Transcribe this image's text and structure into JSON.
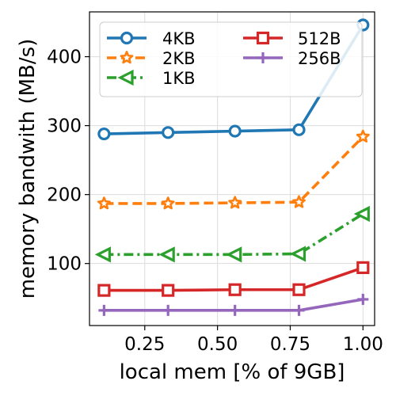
{
  "chart_data": {
    "type": "line",
    "xlabel": "local mem [% of 9GB]",
    "ylabel": "memory bandwith (MB/s)",
    "xlim": [
      0.06,
      1.04
    ],
    "ylim": [
      10,
      465
    ],
    "xticks": [
      0.25,
      0.5,
      0.75,
      1.0
    ],
    "xtick_labels": [
      "0.25",
      "0.50",
      "0.75",
      "1.00"
    ],
    "yticks": [
      100,
      200,
      300,
      400
    ],
    "ytick_labels": [
      "100",
      "200",
      "300",
      "400"
    ],
    "grid": true,
    "legend_position": "top",
    "x": [
      0.11,
      0.33,
      0.56,
      0.78,
      1.0
    ],
    "series": [
      {
        "name": "4KB",
        "values": [
          288,
          290,
          292,
          294,
          446
        ],
        "color": "#1f77b4",
        "marker": "circle",
        "dash": "solid"
      },
      {
        "name": "2KB",
        "values": [
          187,
          187,
          188,
          189,
          284
        ],
        "color": "#ff7f0e",
        "marker": "star",
        "dash": "dashed"
      },
      {
        "name": "1KB",
        "values": [
          113,
          113,
          113,
          114,
          172
        ],
        "color": "#2ca02c",
        "marker": "triangle-left",
        "dash": "dashdot"
      },
      {
        "name": "512B",
        "values": [
          61,
          61,
          62,
          62,
          94
        ],
        "color": "#d62728",
        "marker": "square",
        "dash": "solid"
      },
      {
        "name": "256B",
        "values": [
          32,
          32,
          32,
          32,
          48
        ],
        "color": "#9467bd",
        "marker": "plus",
        "dash": "solid"
      }
    ]
  }
}
